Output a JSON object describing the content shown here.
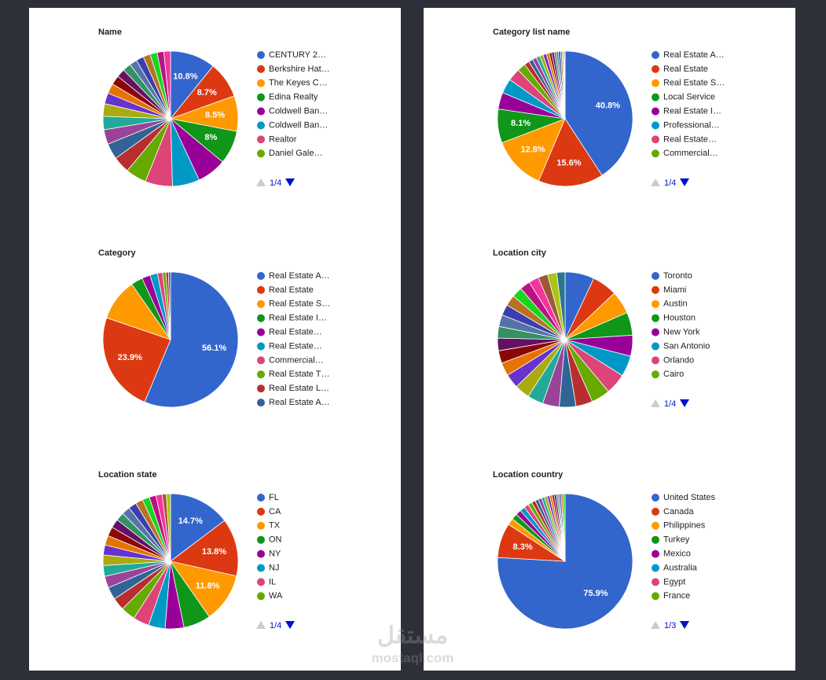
{
  "palette": [
    "#3366cc",
    "#dc3912",
    "#ff9900",
    "#109618",
    "#990099",
    "#0099c6",
    "#dd4477",
    "#66aa00",
    "#b82e2e",
    "#316395",
    "#994499",
    "#22aa99",
    "#aaaa11",
    "#6633cc",
    "#e67300",
    "#8b0707",
    "#651067",
    "#329262",
    "#5574a6",
    "#3b3eac",
    "#b77322",
    "#16d620",
    "#b91383",
    "#f4359e",
    "#9c5935",
    "#a9c413",
    "#2a778d",
    "#668d1c",
    "#bea413",
    "#0c5922",
    "#743411"
  ],
  "watermark": {
    "logo": "مستقل",
    "site": "mostaql.com"
  },
  "chart_data": [
    {
      "type": "pie",
      "title": "Name",
      "page": "1/4",
      "categories": [
        "CENTURY 2…",
        "Berkshire Hat…",
        "The Keyes C…",
        "Edina Realty",
        "Coldwell Ban…",
        "Coldwell Ban…",
        "Realtor",
        "Daniel Gale…",
        null,
        null,
        null,
        null,
        null,
        null,
        null,
        null,
        null,
        null,
        null,
        null,
        null,
        null,
        null,
        null
      ],
      "values": [
        10.8,
        8.7,
        8.5,
        8,
        7,
        6.5,
        6.5,
        5,
        4,
        3.8,
        3.5,
        3.2,
        3,
        2.6,
        2.4,
        2.2,
        2,
        2,
        1.8,
        1.8,
        1.7,
        1.7,
        1.6,
        1.6
      ],
      "value_labels": [
        "10.8%",
        "8.7%",
        "8.5%",
        "8%",
        null,
        null,
        null,
        null,
        null,
        null,
        null,
        null,
        null,
        null,
        null,
        null,
        null,
        null,
        null,
        null,
        null,
        null,
        null,
        null
      ]
    },
    {
      "type": "pie",
      "title": "Category list name",
      "page": "1/4",
      "categories": [
        "Real Estate A…",
        "Real Estate",
        "Real Estate S…",
        "Local Service",
        "Real Estate I…",
        "Professional…",
        "Real Estate…",
        "Commercial…",
        null,
        null,
        null,
        null,
        null,
        null,
        null,
        null,
        null,
        null,
        null,
        null,
        null,
        null,
        null,
        null
      ],
      "values": [
        40.8,
        15.6,
        12.8,
        8.1,
        4,
        3.5,
        3,
        2,
        1.2,
        1,
        1,
        0.9,
        0.8,
        0.8,
        0.7,
        0.6,
        0.6,
        0.5,
        0.5,
        0.5,
        0.4,
        0.3,
        0.2,
        0.2
      ],
      "value_labels": [
        "40.8%",
        "15.6%",
        "12.8%",
        "8.1%",
        null,
        null,
        null,
        null,
        null,
        null,
        null,
        null,
        null,
        null,
        null,
        null,
        null,
        null,
        null,
        null,
        null,
        null,
        null,
        null
      ]
    },
    {
      "type": "pie",
      "title": "Category",
      "categories": [
        "Real Estate A…",
        "Real Estate",
        "Real Estate S…",
        "Real Estate I…",
        "Real Estate…",
        "Real Estate…",
        "Commercial…",
        "Real Estate T…",
        "Real Estate L…",
        "Real Estate A…"
      ],
      "values": [
        56.1,
        23.9,
        10,
        2.8,
        2,
        1.8,
        1.2,
        0.8,
        0.6,
        0.5
      ],
      "value_labels": [
        "56.1%",
        "23.9%",
        null,
        null,
        null,
        null,
        null,
        null,
        null,
        null
      ]
    },
    {
      "type": "pie",
      "title": "Location city",
      "page": "1/4",
      "categories": [
        "Toronto",
        "Miami",
        "Austin",
        "Houston",
        "New York",
        "San Antonio",
        "Orlando",
        "Cairo",
        null,
        null,
        null,
        null,
        null,
        null,
        null,
        null,
        null,
        null,
        null,
        null,
        null,
        null,
        null,
        null,
        null,
        null,
        null
      ],
      "values": [
        7,
        6,
        5.5,
        5.5,
        5,
        5,
        5,
        4.5,
        4,
        4,
        4,
        3.8,
        3.6,
        3.4,
        3.2,
        3,
        3,
        2.8,
        2.8,
        2.6,
        2.6,
        2.5,
        2.5,
        2.4,
        2.3,
        2.2,
        2
      ]
    },
    {
      "type": "pie",
      "title": "Location state",
      "page": "1/4",
      "categories": [
        "FL",
        "CA",
        "TX",
        "ON",
        "NY",
        "NJ",
        "IL",
        "WA",
        null,
        null,
        null,
        null,
        null,
        null,
        null,
        null,
        null,
        null,
        null,
        null,
        null,
        null,
        null,
        null,
        null,
        null
      ],
      "values": [
        14.7,
        13.8,
        11.8,
        6.5,
        4.5,
        4,
        3.8,
        3.5,
        3,
        3,
        2.8,
        2.6,
        2.5,
        2.4,
        2.3,
        2.2,
        2.1,
        2,
        2,
        1.9,
        1.8,
        1.7,
        1.6,
        1.5,
        1,
        1
      ],
      "value_labels": [
        "14.7%",
        "13.8%",
        "11.8%",
        null,
        null,
        null,
        null,
        null,
        null,
        null,
        null,
        null,
        null,
        null,
        null,
        null,
        null,
        null,
        null,
        null,
        null,
        null,
        null,
        null,
        null,
        null
      ]
    },
    {
      "type": "pie",
      "title": "Location country",
      "page": "1/3",
      "categories": [
        "United States",
        "Canada",
        "Philippines",
        "Turkey",
        "Mexico",
        "Australia",
        "Egypt",
        "France",
        null,
        null,
        null,
        null,
        null,
        null,
        null,
        null,
        null,
        null,
        null,
        null,
        null,
        null
      ],
      "values": [
        75.9,
        8.3,
        1.6,
        1.4,
        1.3,
        1.2,
        1.1,
        1,
        0.9,
        0.8,
        0.8,
        0.7,
        0.7,
        0.6,
        0.6,
        0.5,
        0.5,
        0.4,
        0.4,
        0.4,
        0.4,
        0.5
      ],
      "value_labels": [
        "75.9%",
        "8.3%",
        null,
        null,
        null,
        null,
        null,
        null,
        null,
        null,
        null,
        null,
        null,
        null,
        null,
        null,
        null,
        null,
        null,
        null,
        null,
        null
      ]
    }
  ]
}
